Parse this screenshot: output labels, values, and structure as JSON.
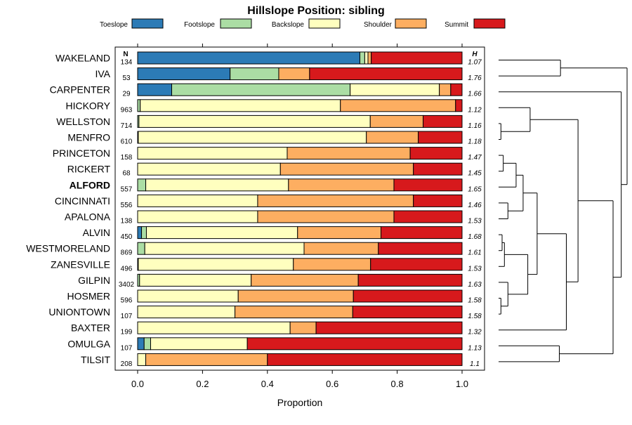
{
  "chart_data": {
    "type": "bar",
    "orientation": "horizontal",
    "stacked": true,
    "title": "Hillslope Position: sibling",
    "xlabel": "Proportion",
    "xlim": [
      0,
      1
    ],
    "x_ticks": [
      "0.0",
      "0.2",
      "0.4",
      "0.6",
      "0.8",
      "1.0"
    ],
    "x_tick_values": [
      0,
      0.2,
      0.4,
      0.6,
      0.8,
      1.0
    ],
    "n_header": "N",
    "h_header": "H",
    "bold_category": "ALFORD",
    "legend_position": "top",
    "legend": [
      {
        "name": "Toeslope",
        "color": "#2c7bb6"
      },
      {
        "name": "Footslope",
        "color": "#abdda4"
      },
      {
        "name": "Backslope",
        "color": "#ffffbf"
      },
      {
        "name": "Shoulder",
        "color": "#fdae61"
      },
      {
        "name": "Summit",
        "color": "#d7191c"
      }
    ],
    "categories": [
      "WAKELAND",
      "IVA",
      "CARPENTER",
      "HICKORY",
      "WELLSTON",
      "MENFRO",
      "PRINCETON",
      "RICKERT",
      "ALFORD",
      "CINCINNATI",
      "APALONA",
      "ALVIN",
      "WESTMORELAND",
      "ZANESVILLE",
      "GILPIN",
      "HOSMER",
      "UNIONTOWN",
      "BAXTER",
      "OMULGA",
      "TILSIT"
    ],
    "n": [
      "134",
      "53",
      "29",
      "963",
      "714",
      "610",
      "158",
      "68",
      "557",
      "556",
      "138",
      "450",
      "869",
      "496",
      "3402",
      "596",
      "107",
      "199",
      "107",
      "208"
    ],
    "h": [
      "1.07",
      "1.76",
      "1.66",
      "1.12",
      "1.16",
      "1.18",
      "1.47",
      "1.45",
      "1.65",
      "1.46",
      "1.53",
      "1.68",
      "1.61",
      "1.53",
      "1.63",
      "1.58",
      "1.58",
      "1.32",
      "1.13",
      "1.1"
    ],
    "series": [
      {
        "name": "Toeslope",
        "values": [
          0.685,
          0.285,
          0.105,
          0.0,
          0.0,
          0.0,
          0.0,
          0.0,
          0.0,
          0.0,
          0.0,
          0.012,
          0.0,
          0.0,
          0.0,
          0.0,
          0.0,
          0.0,
          0.02,
          0.0
        ]
      },
      {
        "name": "Footslope",
        "values": [
          0.015,
          0.15,
          0.55,
          0.008,
          0.004,
          0.002,
          0.0,
          0.0,
          0.025,
          0.0,
          0.0,
          0.015,
          0.022,
          0.002,
          0.006,
          0.0,
          0.0,
          0.0,
          0.02,
          0.0
        ]
      },
      {
        "name": "Backslope",
        "values": [
          0.01,
          0.0,
          0.275,
          0.617,
          0.713,
          0.703,
          0.461,
          0.44,
          0.44,
          0.37,
          0.37,
          0.466,
          0.491,
          0.478,
          0.344,
          0.31,
          0.3,
          0.47,
          0.298,
          0.025
        ]
      },
      {
        "name": "Shoulder",
        "values": [
          0.01,
          0.095,
          0.035,
          0.355,
          0.163,
          0.16,
          0.379,
          0.41,
          0.325,
          0.48,
          0.42,
          0.257,
          0.229,
          0.238,
          0.33,
          0.355,
          0.363,
          0.08,
          0.0,
          0.375
        ]
      },
      {
        "name": "Summit",
        "values": [
          0.28,
          0.47,
          0.035,
          0.02,
          0.12,
          0.135,
          0.16,
          0.15,
          0.21,
          0.15,
          0.21,
          0.25,
          0.258,
          0.282,
          0.32,
          0.335,
          0.337,
          0.45,
          0.662,
          0.6
        ]
      }
    ],
    "dendrogram": {
      "merges": [
        {
          "left": "WAKELAND",
          "right": "IVA",
          "height": 0.53
        },
        {
          "left": "WELLSTON",
          "right": "MENFRO",
          "height": 0.02
        },
        {
          "left": "HICKORY",
          "right": "WELLSTON+MENFRO",
          "height": 0.27
        },
        {
          "left": "PRINCETON",
          "right": "RICKERT",
          "height": 0.04
        },
        {
          "left": "PRINCETON+RICKERT",
          "right": "ALFORD",
          "height": 0.15
        },
        {
          "left": "CINCINNATI",
          "right": "APALONA",
          "height": 0.08
        },
        {
          "left": "PRINCETON+RICKERT+ALFORD",
          "right": "CINCINNATI+APALONA",
          "height": 0.21
        },
        {
          "left": "ALVIN",
          "right": "WESTMORELAND",
          "height": 0.03
        },
        {
          "left": "ALVIN+WESTMORELAND",
          "right": "ZANESVILLE",
          "height": 0.05
        },
        {
          "left": "HOSMER",
          "right": "UNIONTOWN",
          "height": 0.02
        },
        {
          "left": "GILPIN",
          "right": "HOSMER+UNIONTOWN",
          "height": 0.08
        },
        {
          "left": "ALVIN+WESTMORELAND+ZANESVILLE",
          "right": "GILPIN+HOSMER+UNIONTOWN",
          "height": 0.25
        },
        {
          "left": "PRINCETON..APALONA",
          "right": "ALVIN..UNIONTOWN",
          "height": 0.33
        },
        {
          "left": "PRINCETON..UNIONTOWN",
          "right": "BAXTER",
          "height": 0.58
        },
        {
          "left": "HICKORY..MENFRO",
          "right": "PRINCETON..BAXTER",
          "height": 0.68
        },
        {
          "left": "OMULGA",
          "right": "TILSIT",
          "height": 0.52
        },
        {
          "left": "HICKORY..BAXTER",
          "right": "OMULGA+TILSIT",
          "height": 0.98
        },
        {
          "left": "CARPENTER",
          "right": "HICKORY..TILSIT",
          "height": 1.05
        },
        {
          "left": "WAKELAND+IVA",
          "right": "CARPENTER..TILSIT",
          "height": 1.1
        }
      ]
    }
  }
}
